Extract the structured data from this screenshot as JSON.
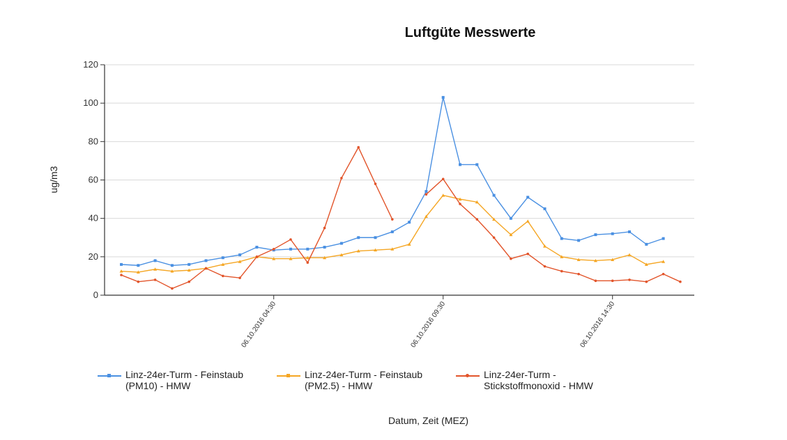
{
  "chart_data": {
    "type": "line",
    "title": "Luftgüte Messwerte",
    "xlabel": "Datum, Zeit (MEZ)",
    "ylabel": "ug/m3",
    "ylim": [
      0,
      120
    ],
    "yticks": [
      0,
      20,
      40,
      60,
      80,
      100,
      120
    ],
    "grid": true,
    "legend_position": "bottom",
    "x_tick_labels": [
      {
        "index": 9,
        "label": "06.10.2016 04:30"
      },
      {
        "index": 19,
        "label": "06.10.2016 09:30"
      },
      {
        "index": 29,
        "label": "06.10.2016 14:30"
      }
    ],
    "series": [
      {
        "name": "Linz-24er-Turm - Feinstaub (PM10) - HMW",
        "color": "#4a90e2",
        "marker": "square",
        "values": [
          16,
          15.5,
          18,
          15.5,
          16,
          18,
          19.5,
          21,
          25,
          23.5,
          24,
          24,
          25,
          27,
          30,
          30,
          33,
          38,
          54,
          103,
          68,
          68,
          52,
          40,
          51,
          45,
          29.5,
          28.5,
          31.5,
          32,
          33,
          26.5,
          29.5,
          null
        ]
      },
      {
        "name": "Linz-24er-Turm - Feinstaub (PM2.5) - HMW",
        "color": "#f5a623",
        "marker": "triangle",
        "values": [
          12.5,
          12,
          13.5,
          12.5,
          13,
          14,
          16,
          17.5,
          20,
          19,
          19,
          19.5,
          19.5,
          21,
          23,
          23.5,
          24,
          26.5,
          41,
          52,
          50,
          48.5,
          39.5,
          31.5,
          38.5,
          25.5,
          20,
          18.5,
          18,
          18.5,
          21,
          16,
          17.5,
          null
        ]
      },
      {
        "name": "Linz-24er-Turm - Stickstoffmonoxid - HMW",
        "color": "#e2542a",
        "marker": "circle",
        "values": [
          10.5,
          7,
          8,
          3.5,
          7,
          14,
          10,
          9,
          20,
          24,
          29,
          17,
          35,
          61,
          77,
          58,
          39.5,
          null,
          52.5,
          60.5,
          47.5,
          39.5,
          30,
          19,
          21.5,
          15,
          12.5,
          11,
          7.5,
          7.5,
          8,
          7,
          11,
          7
        ]
      }
    ]
  }
}
